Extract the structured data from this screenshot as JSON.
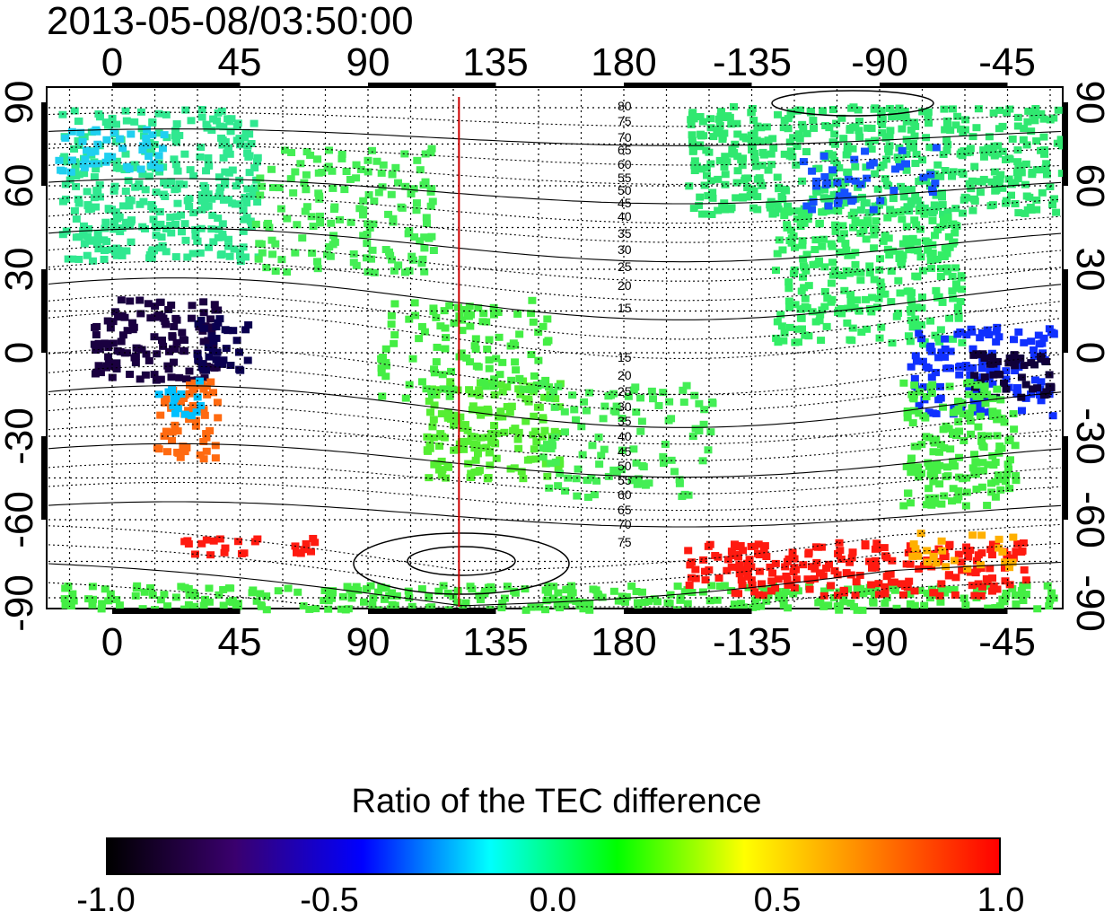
{
  "title": "2013-05-08/03:50:00",
  "map": {
    "top_lon_labels": [
      "0",
      "45",
      "90",
      "135",
      "180",
      "-135",
      "-90",
      "-45"
    ],
    "bottom_lon_labels": [
      "0",
      "45",
      "90",
      "135",
      "180",
      "-135",
      "-90",
      "-45"
    ],
    "left_lat_labels": [
      "90",
      "60",
      "30",
      "0",
      "-30",
      "-60",
      "-90"
    ],
    "right_lat_labels": [
      "90",
      "60",
      "30",
      "0",
      "-30",
      "-60",
      "-90"
    ],
    "contour_labels": [
      "80",
      "75",
      "70",
      "65",
      "60",
      "55",
      "50",
      "45",
      "40",
      "35",
      "30",
      "25",
      "20",
      "15",
      "15",
      "20",
      "25",
      "30",
      "35",
      "40",
      "45",
      "50",
      "55",
      "60",
      "65",
      "70",
      "75"
    ],
    "meridian_marker_lon": 122,
    "meridian_marker_color": "#cc0000"
  },
  "colorbar": {
    "title": "Ratio of the TEC difference",
    "min": -1.0,
    "max": 1.0,
    "tick_labels": [
      "-1.0",
      "-0.5",
      "0.0",
      "0.5",
      "1.0"
    ],
    "colors": [
      "#000000",
      "#3a006e",
      "#0000ff",
      "#00ffff",
      "#00ff00",
      "#ffff00",
      "#ff8000",
      "#ff0000"
    ]
  }
}
